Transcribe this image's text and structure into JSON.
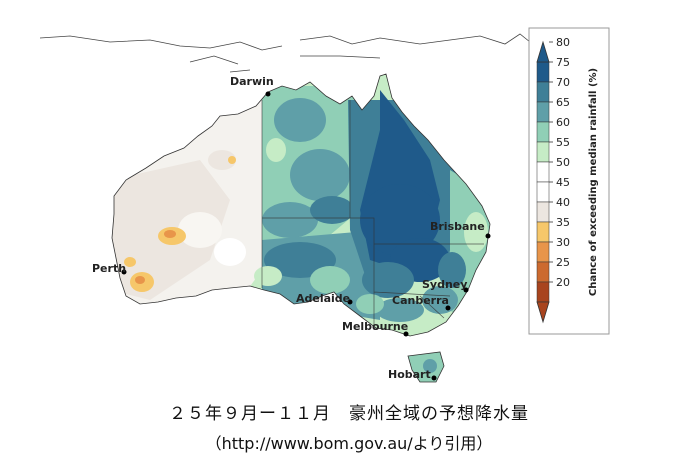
{
  "map": {
    "cities": [
      {
        "id": "darwin",
        "name": "Darwin"
      },
      {
        "id": "perth",
        "name": "Perth"
      },
      {
        "id": "adelaide",
        "name": "Adelaide"
      },
      {
        "id": "melbourne",
        "name": "Melbourne"
      },
      {
        "id": "canberra",
        "name": "Canberra"
      },
      {
        "id": "sydney",
        "name": "Sydney"
      },
      {
        "id": "brisbane",
        "name": "Brisbane"
      },
      {
        "id": "hobart",
        "name": "Hobart"
      }
    ],
    "colorbar": {
      "title": "Chance of exceeding median rainfall (%)",
      "ticks": [
        "80",
        "75",
        "70",
        "65",
        "60",
        "55",
        "50",
        "45",
        "40",
        "35",
        "30",
        "25",
        "20"
      ],
      "bands": [
        {
          "range": "75-80",
          "color": "#1f5a8a"
        },
        {
          "range": "70-75",
          "color": "#3f7f97"
        },
        {
          "range": "65-70",
          "color": "#5f9fa8"
        },
        {
          "range": "60-65",
          "color": "#90cfb6"
        },
        {
          "range": "55-60",
          "color": "#c6ecc6"
        },
        {
          "range": "50-55",
          "color": "#ffffff"
        },
        {
          "range": "45-50",
          "color": "#ffffff"
        },
        {
          "range": "40-45",
          "color": "#ece6e0"
        },
        {
          "range": "35-40",
          "color": "#f6c76a"
        },
        {
          "range": "30-35",
          "color": "#e8954a"
        },
        {
          "range": "25-30",
          "color": "#cc6a2f"
        },
        {
          "range": "20-25",
          "color": "#a8441e"
        }
      ]
    }
  },
  "caption": {
    "line1": "２５年９月ー１１月　豪州全域の予想降水量",
    "line2": "（http://www.bom.gov.au/より引用）"
  }
}
